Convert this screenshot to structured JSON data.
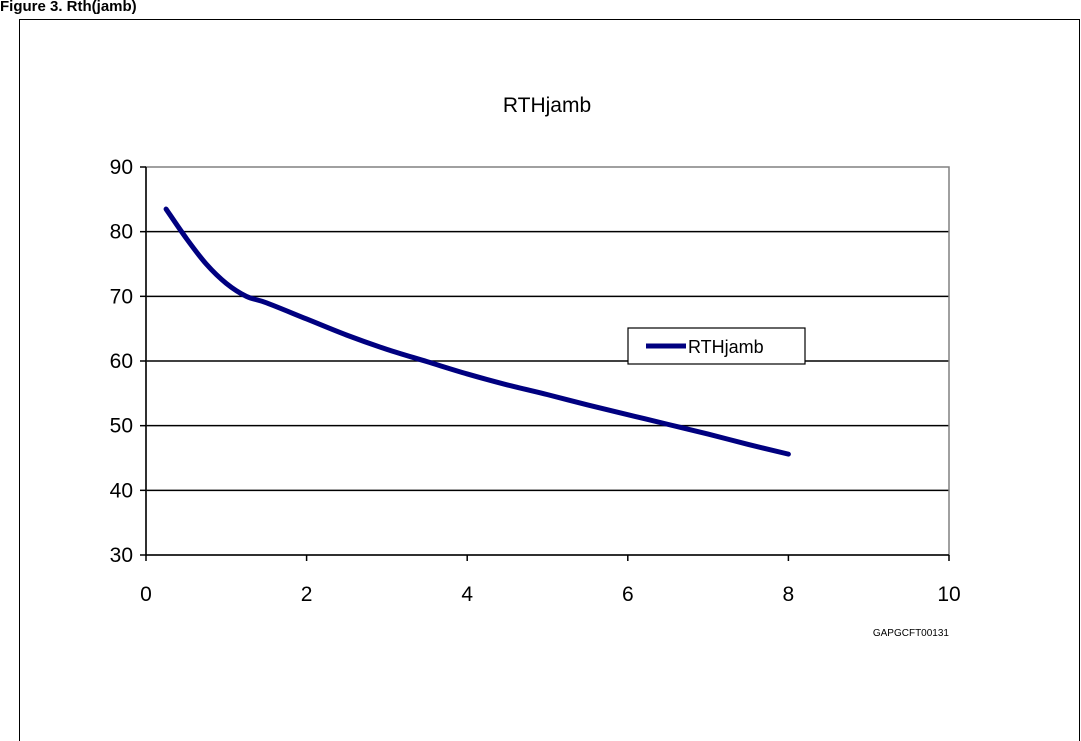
{
  "caption": "Figure 3.  Rth(jamb)",
  "chart_code": "GAPGCFT00131",
  "colors": {
    "series": "#000080",
    "grid": "#000000",
    "plot_border": "#808080",
    "background": "#ffffff"
  },
  "chart_data": {
    "type": "line",
    "title": "RTHjamb",
    "xlabel": "",
    "ylabel": "",
    "xlim": [
      0,
      10
    ],
    "ylim": [
      30,
      90
    ],
    "xticks": [
      0,
      2,
      4,
      6,
      8,
      10
    ],
    "yticks": [
      30,
      40,
      50,
      60,
      70,
      80,
      90
    ],
    "grid": "horizontal",
    "legend_position": "right",
    "series": [
      {
        "name": "RTHjamb",
        "x": [
          0.25,
          0.5,
          0.75,
          1.0,
          1.25,
          1.5,
          2,
          2.5,
          3,
          3.5,
          4,
          4.5,
          5,
          5.5,
          6,
          6.5,
          7,
          7.5,
          8
        ],
        "y": [
          83.5,
          79,
          75,
          72,
          70,
          69,
          66.5,
          64,
          61.8,
          59.9,
          58,
          56.3,
          54.8,
          53.2,
          51.7,
          50.2,
          48.7,
          47.1,
          45.6
        ]
      }
    ]
  }
}
